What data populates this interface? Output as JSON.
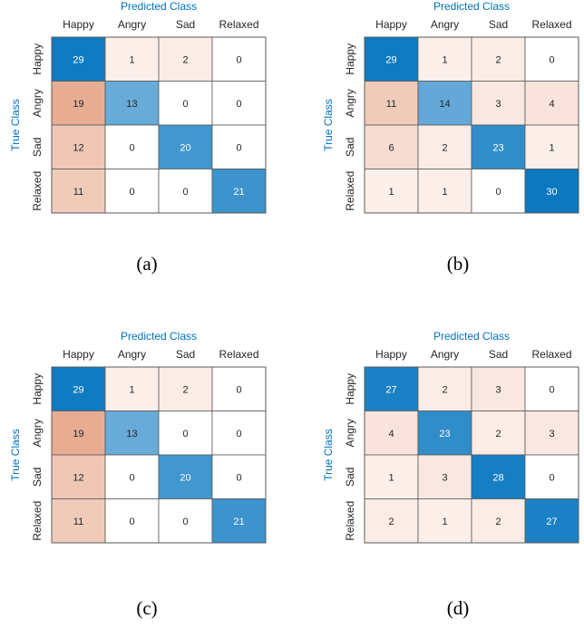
{
  "colors": {
    "title": "#0072bd",
    "diag_max": "#0072bd",
    "offdiag_max": "#d9835c",
    "zero": "#ffffff",
    "grid": "#5a5a5a",
    "text": "#262626"
  },
  "chart_data": [
    {
      "type": "heatmap",
      "caption": "(a)",
      "xlabel": "Predicted Class",
      "ylabel": "True Class",
      "classes": [
        "Happy",
        "Angry",
        "Sad",
        "Relaxed"
      ],
      "matrix": [
        [
          29,
          1,
          2,
          0
        ],
        [
          19,
          13,
          0,
          0
        ],
        [
          12,
          0,
          20,
          0
        ],
        [
          11,
          0,
          0,
          21
        ]
      ]
    },
    {
      "type": "heatmap",
      "caption": "(b)",
      "xlabel": "Predicted Class",
      "ylabel": "True Class",
      "classes": [
        "Happy",
        "Angry",
        "Sad",
        "Relaxed"
      ],
      "matrix": [
        [
          29,
          1,
          2,
          0
        ],
        [
          11,
          14,
          3,
          4
        ],
        [
          6,
          2,
          23,
          1
        ],
        [
          1,
          1,
          0,
          30
        ]
      ]
    },
    {
      "type": "heatmap",
      "caption": "(c)",
      "xlabel": "Predicted Class",
      "ylabel": "True Class",
      "classes": [
        "Happy",
        "Angry",
        "Sad",
        "Relaxed"
      ],
      "matrix": [
        [
          29,
          1,
          2,
          0
        ],
        [
          19,
          13,
          0,
          0
        ],
        [
          12,
          0,
          20,
          0
        ],
        [
          11,
          0,
          0,
          21
        ]
      ]
    },
    {
      "type": "heatmap",
      "caption": "(d)",
      "xlabel": "Predicted Class",
      "ylabel": "True Class",
      "classes": [
        "Happy",
        "Angry",
        "Sad",
        "Relaxed"
      ],
      "matrix": [
        [
          27,
          2,
          3,
          0
        ],
        [
          4,
          23,
          2,
          3
        ],
        [
          1,
          3,
          28,
          0
        ],
        [
          2,
          1,
          2,
          27
        ]
      ]
    }
  ]
}
